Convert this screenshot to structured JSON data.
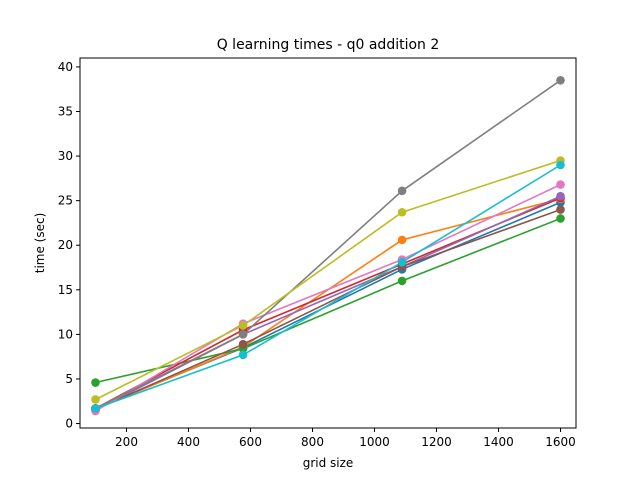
{
  "chart_data": {
    "type": "line",
    "title": "Q learning times - q0 addition 2",
    "xlabel": "grid size",
    "ylabel": "time (sec)",
    "xlim": [
      50,
      1650
    ],
    "ylim": [
      -0.5,
      41
    ],
    "xticks": [
      200,
      400,
      600,
      800,
      1000,
      1200,
      1400,
      1600
    ],
    "xtick_labels": [
      "200",
      "400",
      "600",
      "800",
      "1000",
      "1200",
      "1400",
      "1600"
    ],
    "yticks": [
      0,
      5,
      10,
      15,
      20,
      25,
      30,
      35,
      40
    ],
    "ytick_labels": [
      "0",
      "5",
      "10",
      "15",
      "20",
      "25",
      "30",
      "35",
      "40"
    ],
    "grid": false,
    "x": [
      100,
      576,
      1089,
      1600
    ],
    "series": [
      {
        "color": "#1f77b4",
        "values": [
          1.7,
          8.5,
          17.3,
          24.8
        ]
      },
      {
        "color": "#ff7f0e",
        "values": [
          1.6,
          8.6,
          20.6,
          25.2
        ]
      },
      {
        "color": "#2ca02c",
        "values": [
          4.6,
          8.4,
          16.0,
          23.0
        ]
      },
      {
        "color": "#d62728",
        "values": [
          1.7,
          10.5,
          17.9,
          25.3
        ]
      },
      {
        "color": "#9467bd",
        "values": [
          1.5,
          10.0,
          17.6,
          25.5
        ]
      },
      {
        "color": "#8c564b",
        "values": [
          1.6,
          8.9,
          17.6,
          24.0
        ]
      },
      {
        "color": "#e377c2",
        "values": [
          1.4,
          11.2,
          18.4,
          26.8
        ]
      },
      {
        "color": "#7f7f7f",
        "values": [
          1.7,
          10.0,
          26.1,
          38.5
        ]
      },
      {
        "color": "#bcbd22",
        "values": [
          2.7,
          11.0,
          23.7,
          29.5
        ]
      },
      {
        "color": "#17becf",
        "values": [
          1.7,
          7.7,
          18.1,
          29.0
        ]
      }
    ]
  }
}
